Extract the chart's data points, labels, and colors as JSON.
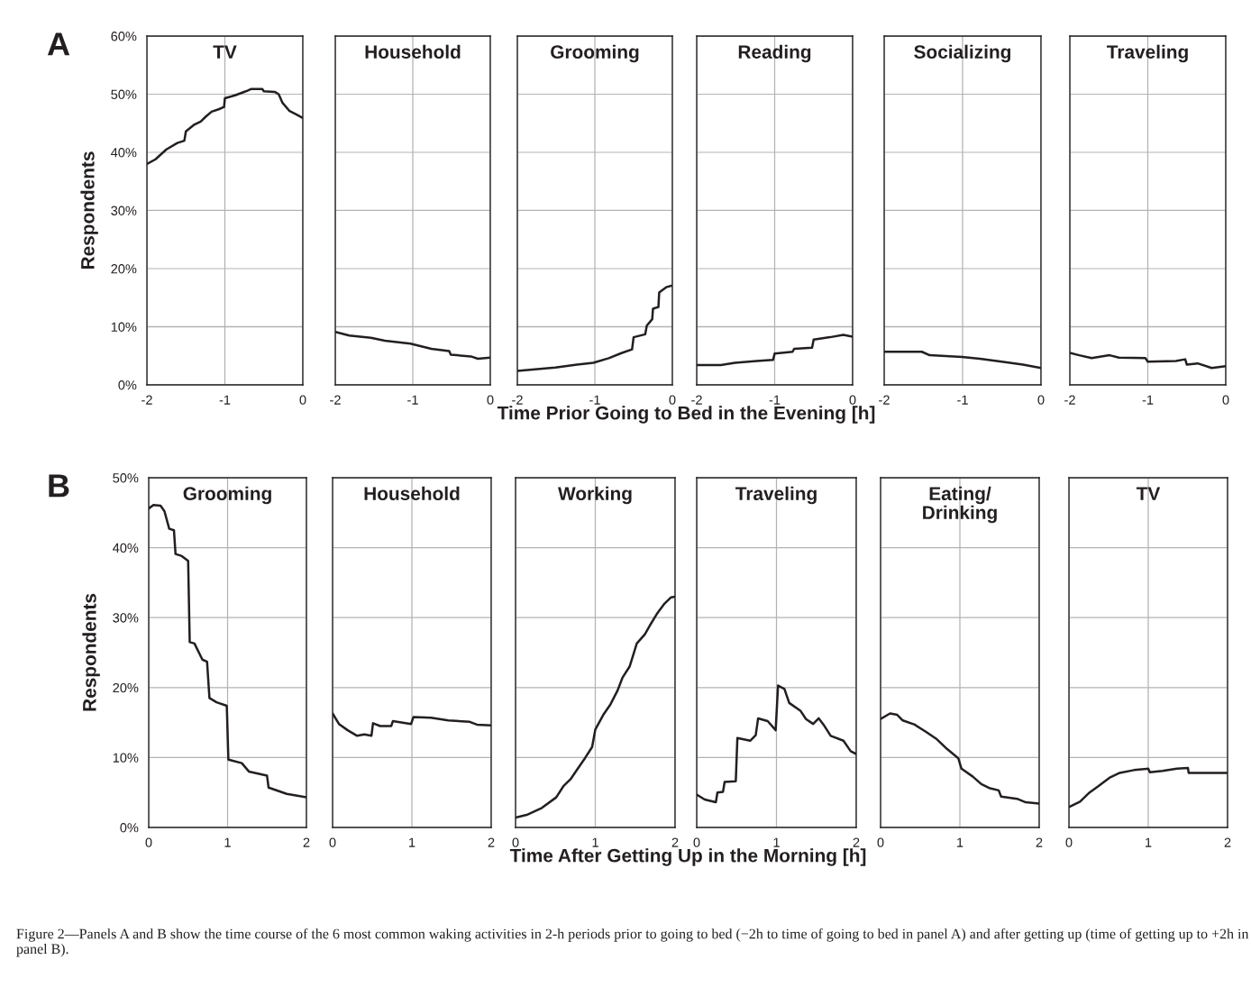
{
  "chart_data": [
    {
      "type": "line",
      "title": "TV",
      "ylabel": "Respondents",
      "annotations": [
        "A"
      ],
      "grid": true,
      "xlim": [
        -2,
        0
      ],
      "xticks": [
        -2,
        -1,
        0
      ],
      "ylim": [
        0,
        60
      ],
      "yticks": [
        {
          "value": 0,
          "label": "0%"
        },
        {
          "value": 10,
          "label": "10%"
        },
        {
          "value": 20,
          "label": "20%"
        },
        {
          "value": 30,
          "label": "30%"
        },
        {
          "value": 40,
          "label": "40%"
        },
        {
          "value": 50,
          "label": "50%"
        },
        {
          "value": 60,
          "label": "60%"
        }
      ],
      "series": [
        {
          "color": "#231f20",
          "x": [
            -2,
            -1.89,
            -1.75,
            -1.61,
            -1.52,
            -1.5,
            -1.4,
            -1.31,
            -1.24,
            -1.17,
            -1.08,
            -1.01,
            -1.0,
            -0.87,
            -0.73,
            -0.66,
            -0.52,
            -0.5,
            -0.36,
            -0.31,
            -0.26,
            -0.17,
            -0.08,
            0
          ],
          "values": [
            38.0,
            38.8,
            40.5,
            41.6,
            42.0,
            43.6,
            44.7,
            45.3,
            46.2,
            47.0,
            47.4,
            47.8,
            49.3,
            49.8,
            50.5,
            50.9,
            50.9,
            50.5,
            50.4,
            50.0,
            48.5,
            47.1,
            46.5,
            45.9
          ]
        }
      ]
    },
    {
      "type": "line",
      "title": "Household",
      "tick_labels": "x",
      "grid": true,
      "xlim": [
        -2,
        0
      ],
      "xticks": [
        -2,
        -1,
        0
      ],
      "ylim": [
        0,
        60
      ],
      "yticks": [
        0,
        10,
        20,
        30,
        40,
        50,
        60
      ],
      "series": [
        {
          "color": "#231f20",
          "x": [
            -2,
            -1.82,
            -1.54,
            -1.36,
            -1.03,
            -0.76,
            -0.53,
            -0.51,
            -0.25,
            -0.16,
            0
          ],
          "values": [
            9.1,
            8.5,
            8.1,
            7.6,
            7.1,
            6.2,
            5.8,
            5.2,
            4.9,
            4.5,
            4.7
          ]
        }
      ]
    },
    {
      "type": "line",
      "title": "Grooming",
      "tick_labels": "x",
      "grid": true,
      "xlim": [
        -2,
        0
      ],
      "xticks": [
        -2,
        -1,
        0
      ],
      "ylim": [
        0,
        60
      ],
      "yticks": [
        0,
        10,
        20,
        30,
        40,
        50,
        60
      ],
      "series": [
        {
          "color": "#231f20",
          "x": [
            -2,
            -1.74,
            -1.51,
            -1.23,
            -1.02,
            -0.82,
            -0.65,
            -0.52,
            -0.5,
            -0.35,
            -0.33,
            -0.26,
            -0.25,
            -0.18,
            -0.17,
            -0.08,
            0
          ],
          "values": [
            2.4,
            2.7,
            3.0,
            3.5,
            3.8,
            4.6,
            5.5,
            6.1,
            8.2,
            8.7,
            10.2,
            11.3,
            13.1,
            13.4,
            15.9,
            16.8,
            17.1
          ]
        }
      ]
    },
    {
      "type": "line",
      "title": "Reading",
      "xlabel": "Time Prior Going to Bed in the Evening [h]",
      "tick_labels": "x",
      "grid": true,
      "xlim": [
        -2,
        0
      ],
      "xticks": [
        -2,
        -1,
        0
      ],
      "ylim": [
        0,
        60
      ],
      "yticks": [
        0,
        10,
        20,
        30,
        40,
        50,
        60
      ],
      "series": [
        {
          "color": "#231f20",
          "x": [
            -2,
            -1.69,
            -1.51,
            -1.23,
            -1.02,
            -1.0,
            -0.77,
            -0.75,
            -0.52,
            -0.5,
            -0.29,
            -0.12,
            0
          ],
          "values": [
            3.4,
            3.4,
            3.8,
            4.1,
            4.3,
            5.4,
            5.7,
            6.2,
            6.4,
            7.8,
            8.2,
            8.6,
            8.3
          ]
        }
      ]
    },
    {
      "type": "line",
      "title": "Socializing",
      "tick_labels": "x",
      "grid": true,
      "xlim": [
        -2,
        0
      ],
      "xticks": [
        -2,
        -1,
        0
      ],
      "ylim": [
        0,
        60
      ],
      "yticks": [
        0,
        10,
        20,
        30,
        40,
        50,
        60
      ],
      "series": [
        {
          "color": "#231f20",
          "x": [
            -2,
            -1.79,
            -1.52,
            -1.42,
            -1.01,
            -0.78,
            -0.5,
            -0.23,
            0
          ],
          "values": [
            5.7,
            5.7,
            5.7,
            5.1,
            4.8,
            4.5,
            4.0,
            3.5,
            2.9
          ]
        }
      ]
    },
    {
      "type": "line",
      "title": "Traveling",
      "tick_labels": "x",
      "grid": true,
      "xlim": [
        -2,
        0
      ],
      "xticks": [
        -2,
        -1,
        0
      ],
      "ylim": [
        0,
        60
      ],
      "yticks": [
        0,
        10,
        20,
        30,
        40,
        50,
        60
      ],
      "series": [
        {
          "color": "#231f20",
          "x": [
            -2,
            -1.88,
            -1.72,
            -1.49,
            -1.37,
            -1.03,
            -1.0,
            -0.64,
            -0.52,
            -0.5,
            -0.36,
            -0.18,
            0
          ],
          "values": [
            5.5,
            5.1,
            4.6,
            5.1,
            4.7,
            4.6,
            4.0,
            4.1,
            4.4,
            3.5,
            3.7,
            2.9,
            3.2
          ]
        }
      ]
    },
    {
      "type": "line",
      "title": "Grooming",
      "ylabel": "Respondents",
      "annotations": [
        "B"
      ],
      "grid": true,
      "xlim": [
        0,
        2
      ],
      "xticks": [
        0,
        1,
        2
      ],
      "ylim": [
        0,
        50
      ],
      "yticks": [
        {
          "value": 0,
          "label": "0%"
        },
        {
          "value": 10,
          "label": "10%"
        },
        {
          "value": 20,
          "label": "20%"
        },
        {
          "value": 30,
          "label": "30%"
        },
        {
          "value": 40,
          "label": "40%"
        },
        {
          "value": 50,
          "label": "50%"
        }
      ],
      "series": [
        {
          "color": "#231f20",
          "x": [
            0,
            0.06,
            0.15,
            0.2,
            0.26,
            0.32,
            0.34,
            0.42,
            0.5,
            0.52,
            0.58,
            0.68,
            0.74,
            0.77,
            0.86,
            0.99,
            1.01,
            1.18,
            1.27,
            1.5,
            1.52,
            1.75,
            2.0
          ],
          "values": [
            45.6,
            46.1,
            46.0,
            45.2,
            42.7,
            42.5,
            39.1,
            38.8,
            38.1,
            26.5,
            26.3,
            24.0,
            23.7,
            18.5,
            17.9,
            17.4,
            9.7,
            9.2,
            8.0,
            7.4,
            5.7,
            4.8,
            4.3
          ]
        }
      ]
    },
    {
      "type": "line",
      "title": "Household",
      "tick_labels": "x",
      "grid": true,
      "xlim": [
        0,
        2
      ],
      "xticks": [
        0,
        1,
        2
      ],
      "ylim": [
        0,
        50
      ],
      "yticks": [
        0,
        10,
        20,
        30,
        40,
        50
      ],
      "series": [
        {
          "color": "#231f20",
          "x": [
            0,
            0.08,
            0.19,
            0.31,
            0.4,
            0.49,
            0.51,
            0.6,
            0.74,
            0.76,
            0.99,
            1.02,
            1.24,
            1.46,
            1.73,
            1.82,
            2.0
          ],
          "values": [
            16.3,
            14.8,
            13.9,
            13.1,
            13.3,
            13.1,
            14.9,
            14.5,
            14.5,
            15.2,
            14.8,
            15.8,
            15.7,
            15.3,
            15.1,
            14.7,
            14.6
          ]
        }
      ]
    },
    {
      "type": "line",
      "title": "Working",
      "tick_labels": "x",
      "grid": true,
      "xlim": [
        0,
        2
      ],
      "xticks": [
        0,
        1,
        2
      ],
      "ylim": [
        0,
        50
      ],
      "yticks": [
        0,
        10,
        20,
        30,
        40,
        50
      ],
      "series": [
        {
          "color": "#231f20",
          "x": [
            0,
            0.14,
            0.33,
            0.51,
            0.6,
            0.69,
            0.78,
            0.87,
            0.96,
            1.0,
            1.1,
            1.19,
            1.28,
            1.34,
            1.43,
            1.52,
            1.62,
            1.68,
            1.77,
            1.86,
            1.95,
            2.0
          ],
          "values": [
            1.4,
            1.8,
            2.8,
            4.3,
            5.9,
            6.9,
            8.4,
            9.9,
            11.5,
            14.0,
            16.1,
            17.6,
            19.6,
            21.4,
            23.0,
            26.3,
            27.6,
            28.8,
            30.5,
            31.9,
            32.9,
            33.0
          ]
        }
      ]
    },
    {
      "type": "line",
      "title": "Traveling",
      "xlabel": "Time After Getting Up in the Morning [h]",
      "tick_labels": "x",
      "grid": true,
      "xlim": [
        0,
        2
      ],
      "xticks": [
        0,
        1,
        2
      ],
      "ylim": [
        0,
        50
      ],
      "yticks": [
        0,
        10,
        20,
        30,
        40,
        50
      ],
      "series": [
        {
          "color": "#231f20",
          "x": [
            0,
            0.1,
            0.24,
            0.26,
            0.33,
            0.35,
            0.49,
            0.51,
            0.67,
            0.74,
            0.77,
            0.89,
            0.99,
            1.02,
            1.1,
            1.16,
            1.3,
            1.37,
            1.46,
            1.53,
            1.59,
            1.68,
            1.84,
            1.93,
            2.0
          ],
          "values": [
            4.7,
            4.0,
            3.6,
            5.0,
            5.1,
            6.5,
            6.6,
            12.8,
            12.4,
            13.2,
            15.6,
            15.2,
            13.9,
            20.3,
            19.8,
            17.8,
            16.7,
            15.5,
            14.8,
            15.6,
            14.7,
            13.1,
            12.4,
            10.9,
            10.5
          ]
        }
      ]
    },
    {
      "type": "line",
      "title": "Eating/\nDrinking",
      "tick_labels": "x",
      "grid": true,
      "xlim": [
        0,
        2
      ],
      "xticks": [
        0,
        1,
        2
      ],
      "ylim": [
        0,
        50
      ],
      "yticks": [
        0,
        10,
        20,
        30,
        40,
        50
      ],
      "series": [
        {
          "color": "#231f20",
          "x": [
            0,
            0.12,
            0.21,
            0.28,
            0.43,
            0.57,
            0.7,
            0.84,
            0.98,
            1.02,
            1.16,
            1.27,
            1.38,
            1.49,
            1.52,
            1.72,
            1.83,
            2.0
          ],
          "values": [
            15.5,
            16.3,
            16.1,
            15.3,
            14.7,
            13.7,
            12.7,
            11.2,
            9.9,
            8.4,
            7.3,
            6.2,
            5.6,
            5.3,
            4.4,
            4.1,
            3.6,
            3.4
          ]
        }
      ]
    },
    {
      "type": "line",
      "title": "TV",
      "tick_labels": "x",
      "grid": true,
      "xlim": [
        0,
        2
      ],
      "xticks": [
        0,
        1,
        2
      ],
      "ylim": [
        0,
        50
      ],
      "yticks": [
        0,
        10,
        20,
        30,
        40,
        50
      ],
      "annotations": [
        "Figure 2—Panels A and B show the time course of the 6 most common waking activities in 2-h periods prior to going to bed (−2h to time of going to bed in panel A) and after getting up (time of getting up to +2h in panel B)."
      ],
      "series": [
        {
          "color": "#231f20",
          "x": [
            0,
            0.14,
            0.26,
            0.37,
            0.51,
            0.64,
            0.82,
            1.0,
            1.02,
            1.18,
            1.36,
            1.5,
            1.51,
            1.77,
            2.0
          ],
          "values": [
            2.9,
            3.7,
            5.0,
            5.9,
            7.1,
            7.8,
            8.2,
            8.4,
            7.9,
            8.1,
            8.4,
            8.5,
            7.8,
            7.8,
            7.8
          ]
        }
      ]
    }
  ]
}
